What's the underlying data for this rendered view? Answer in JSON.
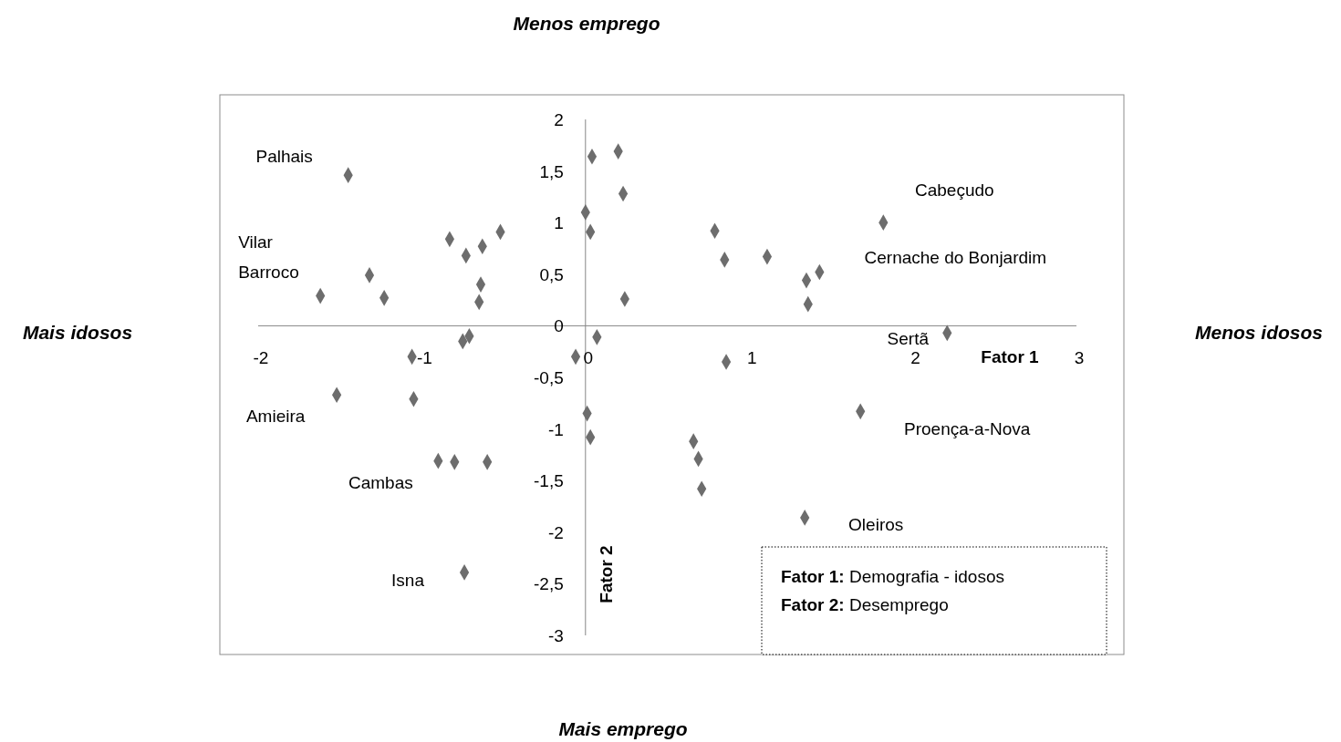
{
  "chart_data": {
    "type": "scatter",
    "xlabel": "Fator 1",
    "ylabel": "Fator 2",
    "xlim": [
      -2,
      3
    ],
    "ylim": [
      -3,
      2
    ],
    "xticks": [
      -2,
      -1,
      0,
      1,
      2,
      3
    ],
    "yticks": [
      {
        "value": -3,
        "label": "-3"
      },
      {
        "value": -2.5,
        "label": "-2,5"
      },
      {
        "value": -2,
        "label": "-2"
      },
      {
        "value": -1.5,
        "label": "-1,5"
      },
      {
        "value": -1,
        "label": "-1"
      },
      {
        "value": -0.5,
        "label": "-0,5"
      },
      {
        "value": 0,
        "label": "0"
      },
      {
        "value": 0.5,
        "label": "0,5"
      },
      {
        "value": 1,
        "label": "1"
      },
      {
        "value": 1.5,
        "label": "1,5"
      },
      {
        "value": 2,
        "label": "2"
      }
    ],
    "marker": "diamond",
    "grid": false,
    "series": [
      {
        "color": "#6d6d6d",
        "x": [
          -1.45,
          0.04,
          0.2,
          0.23,
          0.0,
          0.03,
          1.82,
          -0.83,
          -0.52,
          -0.63,
          -0.73,
          0.79,
          0.85,
          1.11,
          1.43,
          1.35,
          -1.32,
          -0.64,
          -1.62,
          -1.23,
          -0.65,
          0.24,
          1.36,
          2.21,
          0.07,
          -0.71,
          -0.75,
          -1.06,
          -0.06,
          0.86,
          -1.52,
          -1.05,
          1.68,
          0.01,
          0.03,
          0.66,
          0.69,
          -0.9,
          -0.8,
          -0.6,
          0.71,
          1.34,
          -0.74
        ],
        "values": [
          1.46,
          1.64,
          1.69,
          1.28,
          1.1,
          0.91,
          1.0,
          0.84,
          0.91,
          0.77,
          0.68,
          0.92,
          0.64,
          0.67,
          0.52,
          0.44,
          0.49,
          0.4,
          0.29,
          0.27,
          0.23,
          0.26,
          0.21,
          -0.07,
          -0.11,
          -0.1,
          -0.15,
          -0.3,
          -0.3,
          -0.35,
          -0.67,
          -0.71,
          -0.83,
          -0.85,
          -1.08,
          -1.12,
          -1.29,
          -1.31,
          -1.32,
          -1.32,
          -1.58,
          -1.86,
          -2.39
        ]
      }
    ],
    "annotations": [
      {
        "text": "Palhais",
        "x": -1.45,
        "y": 1.46
      },
      {
        "text": "Cabeçudo",
        "x": 1.82,
        "y": 1.0
      },
      {
        "text": "Cernache do Bonjardim",
        "x": 1.43,
        "y": 0.52
      },
      {
        "text": "Vilar Barroco",
        "x": -1.62,
        "y": 0.29
      },
      {
        "text": "Sertã",
        "x": 2.21,
        "y": -0.07
      },
      {
        "text": "Amieira",
        "x": -1.52,
        "y": -0.67
      },
      {
        "text": "Proença-a-Nova",
        "x": 1.68,
        "y": -0.83
      },
      {
        "text": "Cambas",
        "x": -0.9,
        "y": -1.31
      },
      {
        "text": "Oleiros",
        "x": 1.34,
        "y": -1.86
      },
      {
        "text": "Isna",
        "x": -0.74,
        "y": -2.39
      },
      "Menos emprego",
      "Mais emprego",
      "Mais idosos",
      "Menos idosos",
      "Fator 1: Demografia - idosos",
      "Fator 2: Desemprego"
    ]
  }
}
